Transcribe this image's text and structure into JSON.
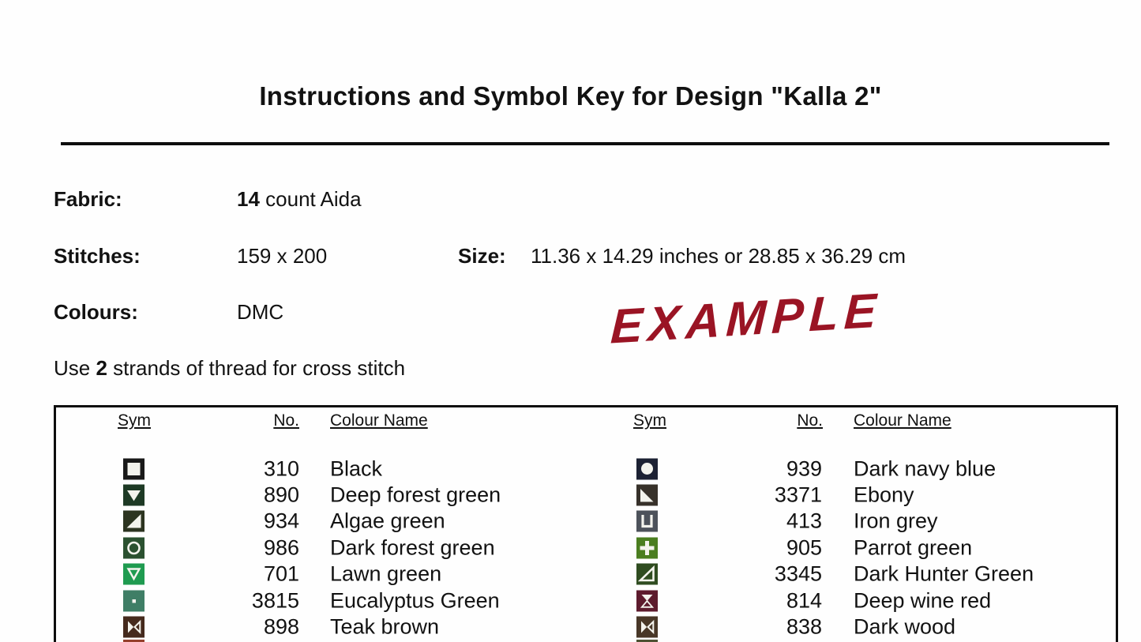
{
  "page": {
    "title": "Instructions and Symbol Key for Design \"Kalla 2\"",
    "watermark": "EXAMPLE",
    "watermark_color": "#9a1424",
    "text_color": "#121212"
  },
  "info": {
    "fabric_label": "Fabric:",
    "fabric_count": "14",
    "fabric_rest": " count Aida",
    "stitches_label": "Stitches:",
    "stitches_value": "159 x 200",
    "size_label": "Size:",
    "size_value": "11.36 x 14.29 inches or 28.85 x 36.29 cm",
    "colours_label": "Colours:",
    "colours_value": "DMC",
    "strands_prefix": "Use ",
    "strands_bold": "2",
    "strands_suffix": " strands of thread for cross stitch"
  },
  "key_table": {
    "headers": {
      "sym": "Sym",
      "no": "No.",
      "name": "Colour Name"
    },
    "glyph_color": "#f3f3ed",
    "left_rows": [
      {
        "icon": "white-square-icon",
        "glyph": "square-filled",
        "bg": "#191919",
        "no": "310",
        "name": "Black"
      },
      {
        "icon": "filled-down-triangle-icon",
        "glyph": "tri-down-filled",
        "bg": "#1e3a25",
        "no": "890",
        "name": "Deep forest green"
      },
      {
        "icon": "filled-corner-triangle-icon",
        "glyph": "tri-br-filled",
        "bg": "#2c3420",
        "no": "934",
        "name": "Algae green"
      },
      {
        "icon": "circle-outline-icon",
        "glyph": "circle-outline",
        "bg": "#2b5130",
        "no": "986",
        "name": "Dark forest green"
      },
      {
        "icon": "outline-down-triangle-icon",
        "glyph": "tri-down-outline",
        "bg": "#1f9b50",
        "no": "701",
        "name": "Lawn green"
      },
      {
        "icon": "small-dot-icon",
        "glyph": "dot",
        "bg": "#3f7e66",
        "no": "3815",
        "name": "Eucalyptus Green"
      },
      {
        "icon": "bowtie-icon",
        "glyph": "bowtie",
        "bg": "#452a1d",
        "no": "898",
        "name": "Teak brown"
      }
    ],
    "right_rows": [
      {
        "icon": "filled-circle-icon",
        "glyph": "circle-filled",
        "bg": "#1c2133",
        "no": "939",
        "name": "Dark navy blue"
      },
      {
        "icon": "filled-corner-triangle-icon",
        "glyph": "tri-bl-filled",
        "bg": "#37312a",
        "no": "3371",
        "name": "Ebony"
      },
      {
        "icon": "u-shape-icon",
        "glyph": "u-outline",
        "bg": "#4d525b",
        "no": "413",
        "name": "Iron grey"
      },
      {
        "icon": "plus-icon",
        "glyph": "plus",
        "bg": "#4b7e20",
        "no": "905",
        "name": "Parrot green"
      },
      {
        "icon": "outline-corner-triangle-icon",
        "glyph": "tri-br-outline",
        "bg": "#2f4c20",
        "no": "3345",
        "name": "Dark Hunter Green"
      },
      {
        "icon": "hourglass-icon",
        "glyph": "hourglass",
        "bg": "#5d1b2d",
        "no": "814",
        "name": "Deep wine red"
      },
      {
        "icon": "bowtie-icon",
        "glyph": "bowtie",
        "bg": "#483727",
        "no": "838",
        "name": "Dark wood"
      }
    ],
    "left_partial_next": {
      "bg": "#96402c"
    },
    "right_partial_next": {
      "bg": "#4e5233"
    }
  }
}
